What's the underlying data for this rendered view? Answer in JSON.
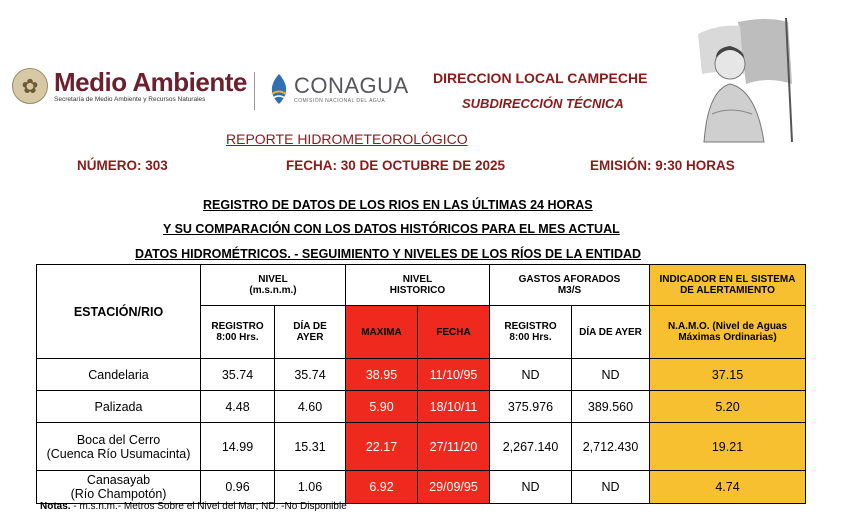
{
  "header": {
    "medio_ambiente": "Medio Ambiente",
    "medio_ambiente_sub": "Secretaría de Medio Ambiente y Recursos Naturales",
    "conagua": "CONAGUA",
    "conagua_sub": "COMISIÓN NACIONAL DEL AGUA",
    "direccion": "DIRECCION LOCAL CAMPECHE",
    "subdireccion": "SUBDIRECCIÓN TÉCNICA"
  },
  "report": {
    "title": "REPORTE HIDROMETEOROLÓGICO",
    "numero": "NÚMERO: 303",
    "fecha": "FECHA: 30 DE OCTUBRE DE 2025",
    "emision": "EMISIÓN: 9:30 HORAS"
  },
  "titles": {
    "line1": "REGISTRO DE DATOS DE LOS RIOS EN LAS ÚLTIMAS 24 HORAS",
    "line2": "Y SU COMPARACIÓN CON LOS DATOS HISTÓRICOS PARA EL MES ACTUAL",
    "line3": "DATOS HIDROMÉTRICOS. - SEGUIMIENTO Y NIVELES DE LOS RÍOS DE LA ENTIDAD"
  },
  "table": {
    "col_station": "ESTACIÓN/RIO",
    "group_nivel": "NIVEL",
    "group_nivel_unit": "(m.s.n.m.)",
    "group_hist": "NIVEL",
    "group_hist_2": "HISTORICO",
    "group_gastos": "GASTOS AFORADOS",
    "group_gastos_unit": "M3/S",
    "group_ind": "INDICADOR EN EL SISTEMA",
    "group_ind_2": "DE ALERTAMIENTO",
    "sub_registro": "REGISTRO",
    "sub_registro_2": "8:00 Hrs.",
    "sub_dia": "DÍA DE",
    "sub_dia_2": "AYER",
    "sub_maxima": "MAXIMA",
    "sub_fecha": "FECHA",
    "sub_g_registro": "REGISTRO",
    "sub_g_registro_2": "8:00 Hrs.",
    "sub_g_dia": "DÍA DE AYER",
    "sub_namo": "N.A.M.O. (Nivel de Aguas",
    "sub_namo_2": "Máximas Ordinarias)",
    "rows": [
      {
        "station": "Candelaria",
        "station2": "",
        "registro": "35.74",
        "ayer": "35.74",
        "maxima": "38.95",
        "fecha": "11/10/95",
        "g_registro": "ND",
        "g_ayer": "ND",
        "namo": "37.15"
      },
      {
        "station": "Palizada",
        "station2": "",
        "registro": "4.48",
        "ayer": "4.60",
        "maxima": "5.90",
        "fecha": "18/10/11",
        "g_registro": "375.976",
        "g_ayer": "389.560",
        "namo": "5.20"
      },
      {
        "station": "Boca del Cerro",
        "station2": "(Cuenca Río Usumacinta)",
        "registro": "14.99",
        "ayer": "15.31",
        "maxima": "22.17",
        "fecha": "27/11/20",
        "g_registro": "2,267.140",
        "g_ayer": "2,712.430",
        "namo": "19.21"
      },
      {
        "station": "Canasayab",
        "station2": "(Río Champotón)",
        "registro": "0.96",
        "ayer": "1.06",
        "maxima": "6.92",
        "fecha": "29/09/95",
        "g_registro": "ND",
        "g_ayer": "ND",
        "namo": "4.74"
      }
    ]
  },
  "notes": {
    "label": "Notas.",
    "text": " - m.s.n.m.- Metros Sobre el Nivel del Mar; ND. -No Disponible"
  },
  "colors": {
    "accent_red": "#8b1a1a",
    "cell_red": "#f0291e",
    "cell_orange": "#f7c030"
  }
}
